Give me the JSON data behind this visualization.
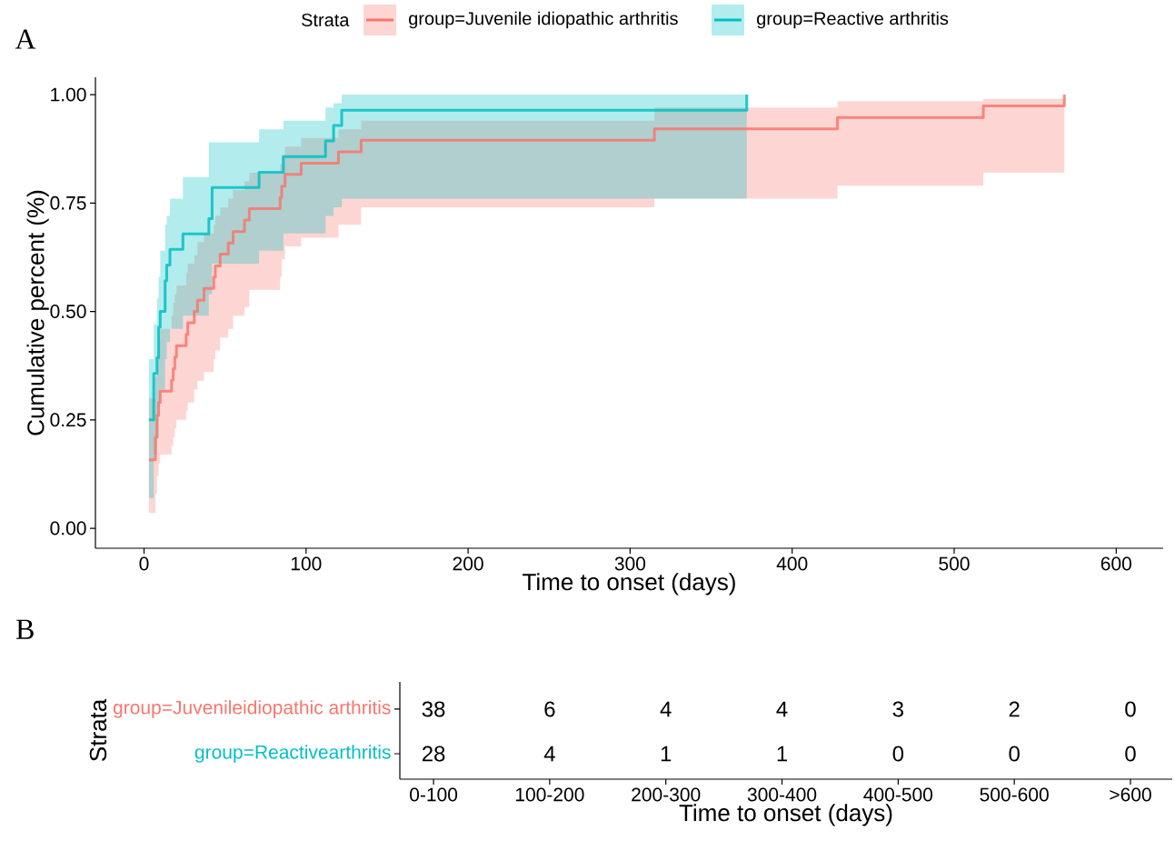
{
  "chart_data": [
    {
      "type": "step",
      "title": "A",
      "xlabel": "Time to onset (days)",
      "ylabel": "Cumulative percent (%)",
      "legend_title": "Strata",
      "legend": "top",
      "xlim": [
        -30,
        629
      ],
      "ylim": [
        -0.046,
        1.04
      ],
      "xticks": [
        0,
        100,
        200,
        300,
        400,
        500,
        600
      ],
      "yticks": [
        {
          "value": 0,
          "label": "0.00"
        },
        {
          "value": 0.25,
          "label": "0.25"
        },
        {
          "value": 0.5,
          "label": "0.50"
        },
        {
          "value": 0.75,
          "label": "0.75"
        },
        {
          "value": 1,
          "label": "1.00"
        }
      ],
      "series": [
        {
          "name": "group=Juvenile idiopathic arthritis",
          "color": "#f8766d",
          "x": [
            3,
            7,
            8,
            9,
            10,
            17,
            18,
            19,
            20,
            26,
            27,
            31,
            33,
            37,
            43,
            44,
            47,
            52,
            55,
            62,
            65,
            84,
            85,
            87,
            97,
            120,
            134,
            315,
            428,
            518,
            568
          ],
          "values": [
            0.158,
            0.21,
            0.26,
            0.29,
            0.316,
            0.342,
            0.368,
            0.395,
            0.421,
            0.447,
            0.474,
            0.5,
            0.526,
            0.553,
            0.579,
            0.605,
            0.632,
            0.658,
            0.684,
            0.711,
            0.737,
            0.763,
            0.789,
            0.816,
            0.842,
            0.868,
            0.895,
            0.921,
            0.947,
            0.974,
            1.0
          ],
          "lower": [
            0.035,
            0.08,
            0.12,
            0.15,
            0.17,
            0.19,
            0.21,
            0.23,
            0.25,
            0.27,
            0.29,
            0.32,
            0.34,
            0.36,
            0.39,
            0.41,
            0.44,
            0.46,
            0.49,
            0.51,
            0.55,
            0.58,
            0.62,
            0.65,
            0.67,
            0.7,
            0.74,
            0.76,
            0.79,
            0.82,
            0.82
          ],
          "upper": [
            0.3,
            0.35,
            0.4,
            0.44,
            0.46,
            0.49,
            0.52,
            0.54,
            0.56,
            0.59,
            0.61,
            0.63,
            0.66,
            0.68,
            0.7,
            0.72,
            0.74,
            0.76,
            0.78,
            0.8,
            0.82,
            0.84,
            0.86,
            0.88,
            0.9,
            0.92,
            0.94,
            0.97,
            0.985,
            0.99,
            0.99
          ]
        },
        {
          "name": "group=Reactive arthritis",
          "color": "#00bfc4",
          "x": [
            3,
            6,
            8,
            9,
            10,
            13,
            14,
            16,
            24,
            40,
            42,
            71,
            86,
            112,
            117,
            122,
            372
          ],
          "values": [
            0.25,
            0.357,
            0.393,
            0.464,
            0.5,
            0.571,
            0.607,
            0.643,
            0.679,
            0.714,
            0.786,
            0.821,
            0.857,
            0.893,
            0.929,
            0.964,
            1.0
          ],
          "lower": [
            0.07,
            0.17,
            0.21,
            0.28,
            0.32,
            0.39,
            0.43,
            0.46,
            0.49,
            0.54,
            0.61,
            0.64,
            0.68,
            0.72,
            0.74,
            0.76,
            0.76
          ],
          "upper": [
            0.39,
            0.47,
            0.53,
            0.58,
            0.64,
            0.7,
            0.72,
            0.76,
            0.81,
            0.89,
            0.89,
            0.92,
            0.94,
            0.97,
            0.98,
            1.0,
            1.0
          ]
        }
      ]
    },
    {
      "type": "heatmap",
      "title": "B",
      "xlabel": "Time to onset (days)",
      "ylabel": "Strata",
      "data_labels": true,
      "categories": [
        "0-100",
        "100-200",
        "200-300",
        "300-400",
        "400-500",
        "500-600",
        ">600"
      ],
      "y_categories": [
        "group=Juvenileidiopathic arthritis",
        "group=Reactivearthritis"
      ],
      "cells": [
        [
          38,
          6,
          4,
          4,
          3,
          2,
          0
        ],
        [
          28,
          4,
          1,
          1,
          0,
          0,
          0
        ]
      ]
    }
  ]
}
